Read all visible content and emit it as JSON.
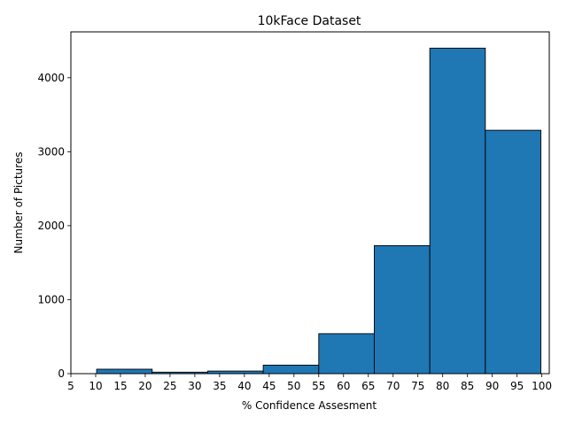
{
  "chart_data": {
    "type": "bar",
    "subtype": "histogram",
    "title": "10kFace Dataset",
    "xlabel": "% Confidence Assesment",
    "ylabel": "Number of Pictures",
    "bins": [
      {
        "x0": 10.2,
        "x1": 21.4,
        "value": 60
      },
      {
        "x0": 21.4,
        "x1": 32.6,
        "value": 20
      },
      {
        "x0": 32.6,
        "x1": 43.8,
        "value": 35
      },
      {
        "x0": 43.8,
        "x1": 55.0,
        "value": 115
      },
      {
        "x0": 55.0,
        "x1": 66.2,
        "value": 540
      },
      {
        "x0": 66.2,
        "x1": 77.4,
        "value": 1730
      },
      {
        "x0": 77.4,
        "x1": 88.6,
        "value": 4400
      },
      {
        "x0": 88.6,
        "x1": 99.8,
        "value": 3290
      }
    ],
    "xlim": [
      5,
      101.5
    ],
    "ylim": [
      0,
      4620
    ],
    "xticks": [
      5,
      10,
      15,
      20,
      25,
      30,
      35,
      40,
      45,
      50,
      55,
      60,
      65,
      70,
      75,
      80,
      85,
      90,
      95,
      100
    ],
    "yticks": [
      0,
      1000,
      2000,
      3000,
      4000
    ],
    "bar_color": "#1f77b4",
    "edge_color": "#000000",
    "grid": false,
    "legend": "none"
  }
}
